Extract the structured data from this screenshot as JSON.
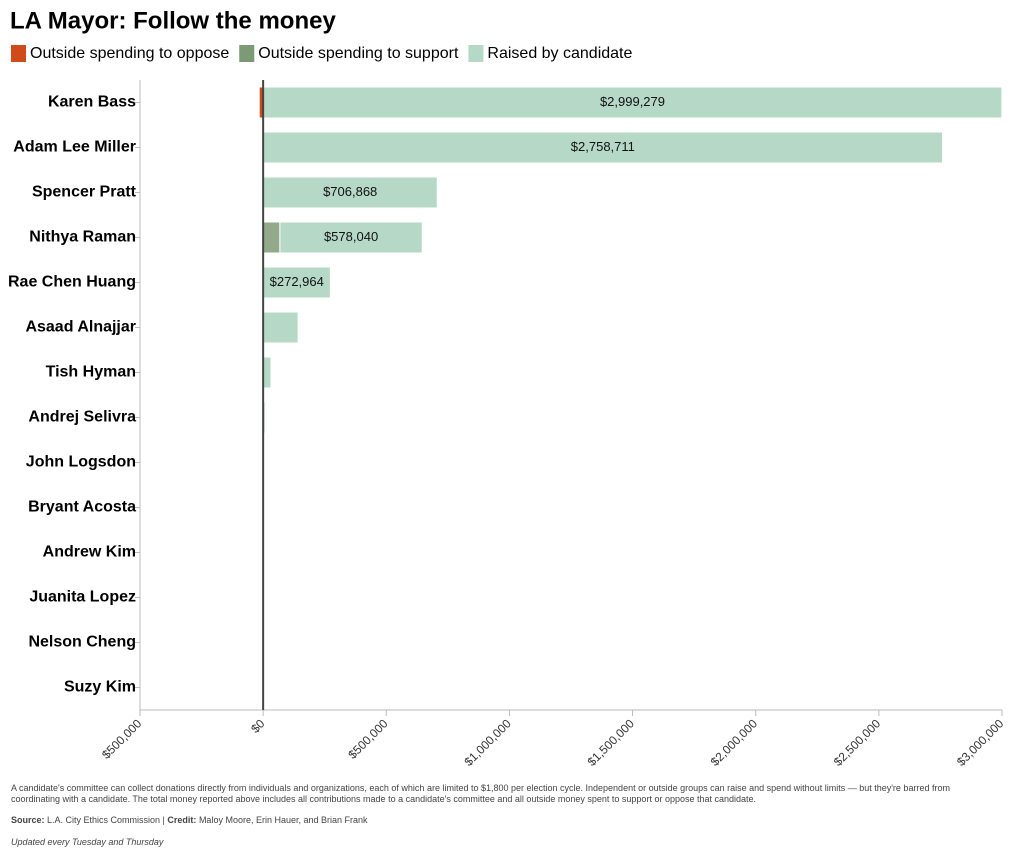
{
  "chart_data": {
    "type": "bar",
    "title": "LA Mayor: Follow the money",
    "categories": [
      "Karen Bass",
      "Adam Lee Miller",
      "Spencer Pratt",
      "Nithya Raman",
      "Rae Chen Huang",
      "Asaad Alnajjar",
      "Tish Hyman",
      "Andrej Selivra",
      "John Logsdon",
      "Bryant Acosta",
      "Andrew Kim",
      "Juanita Lopez",
      "Nelson Cheng",
      "Suzy Kim"
    ],
    "series": [
      {
        "name": "Outside spending to oppose",
        "color": "#d2491c",
        "values": [
          -16000,
          0,
          0,
          0,
          0,
          0,
          0,
          0,
          0,
          0,
          0,
          0,
          0,
          0
        ]
      },
      {
        "name": "Outside spending to support",
        "color": "#93a98b",
        "legend_color": "#7d9a76",
        "values": [
          0,
          0,
          0,
          68000,
          0,
          0,
          0,
          0,
          0,
          0,
          0,
          0,
          0,
          0
        ]
      },
      {
        "name": "Raised by candidate",
        "color": "#b6d9c7",
        "values": [
          2999279,
          2758711,
          706868,
          578040,
          272964,
          142000,
          32000,
          8000,
          0,
          0,
          0,
          0,
          0,
          0
        ],
        "value_labels": [
          "$2,999,279",
          "$2,758,711",
          "$706,868",
          "$578,040",
          "$272,964",
          null,
          null,
          null,
          null,
          null,
          null,
          null,
          null,
          null
        ]
      }
    ],
    "xlim": [
      -500000,
      3000000
    ],
    "xticks": [
      {
        "value": -500000,
        "label": "$500,000"
      },
      {
        "value": 0,
        "label": "$0"
      },
      {
        "value": 500000,
        "label": "$500,000"
      },
      {
        "value": 1000000,
        "label": "$1,000,000"
      },
      {
        "value": 1500000,
        "label": "$1,500,000"
      },
      {
        "value": 2000000,
        "label": "$2,000,000"
      },
      {
        "value": 2500000,
        "label": "$2,500,000"
      },
      {
        "value": 3000000,
        "label": "$3,000,000"
      }
    ],
    "notes": "A candidate's committee can collect donations directly from individuals and organizations, each of which are limited to $1,800 per election cycle. Independent or outside groups can raise and spend without limits — but they're barred from coordinating with a candidate. The total money reported above includes all contributions made to a candidate's committee and all outside money spent to support or oppose that candidate.",
    "source_label": "Source:",
    "source": "L.A. City Ethics Commission |",
    "credit_label": "Credit:",
    "credit": "Maloy Moore, Erin Hauer, and Brian Frank",
    "updated": "Updated every Tuesday and Thursday"
  }
}
